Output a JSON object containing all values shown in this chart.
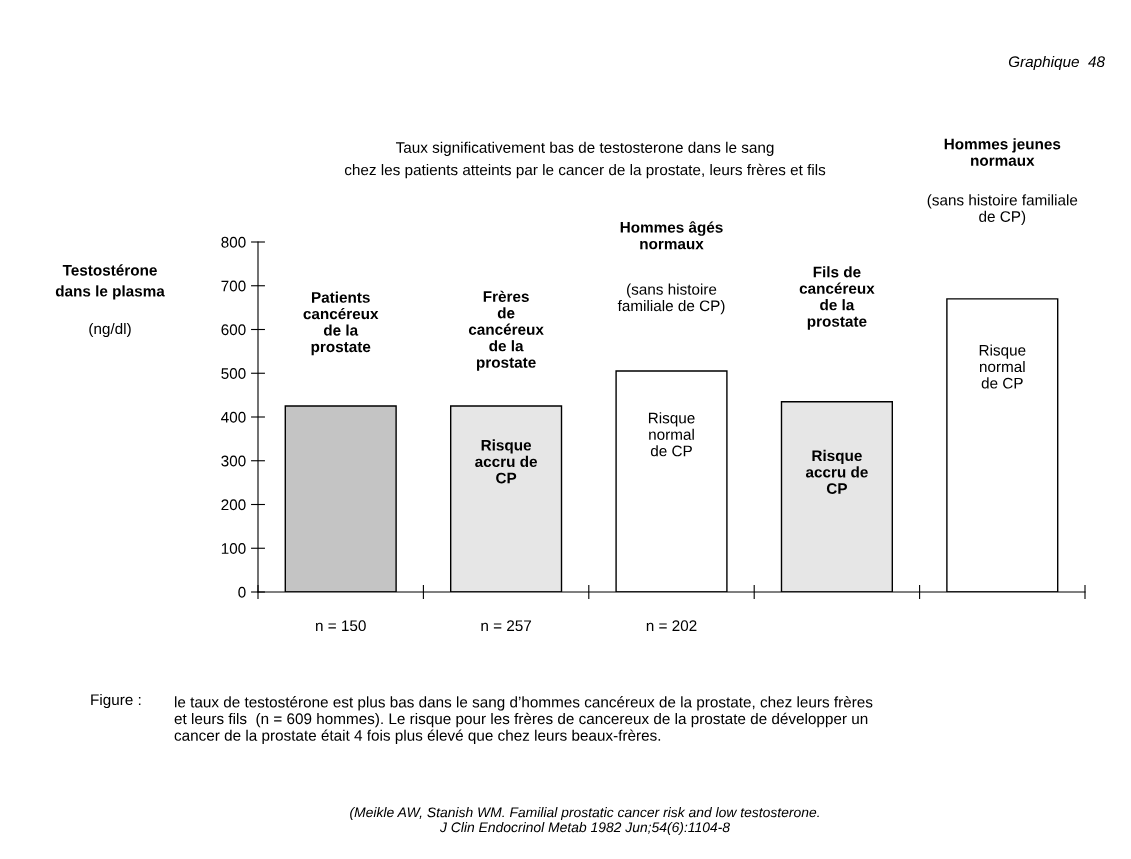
{
  "chart_data": {
    "type": "bar",
    "title": "Taux significativement bas de testosterone dans le sang\nchez les patients atteints par le cancer de la prostate, leurs frères et fils",
    "ylabel": "Testostérone\ndans le plasma",
    "categories": [
      "n = 150",
      "n = 257",
      "n = 202",
      null,
      null
    ],
    "values": [
      425,
      425,
      505,
      435,
      670
    ],
    "colors": [
      "#c4c4c4",
      "#e6e6e6",
      "#ffffff",
      "#e6e6e6",
      "#ffffff"
    ],
    "ylim": [
      0,
      800
    ],
    "yticks": [
      0,
      100,
      200,
      300,
      400,
      500,
      600,
      700,
      800
    ],
    "grid": false,
    "legend": false,
    "annotations": [
      "Graphique  48",
      "Patients\ncancéreux\nde la\nprostate",
      "Frères\nde\ncancéreux\nde la\nprostate",
      "Risque\naccru de\nCP",
      "Hommes âgés\nnormaux",
      "(sans histoire\nfamiliale de CP)",
      "Risque\nnormal\nde CP",
      "Fils de\ncancéreux\nde la\nprostate",
      "Risque\naccru de\nCP",
      "Hommes jeunes\nnormaux",
      "(sans histoire familiale\nde CP)",
      "Risque\nnormal\nde CP",
      "(ng/dl)",
      "Figure :",
      "le taux de testostérone est plus bas dans le sang d’hommes cancéreux de la prostate, chez leurs frères\net leurs fils  (n = 609 hommes). Le risque pour les frères de cancereux de la prostate de développer un\ncancer de la prostate était 4 fois plus élevé que chez leurs beaux-frères.",
      "(Meikle AW, Stanish WM. Familial prostatic cancer risk and low testosterone.\nJ Clin Endocrinol Metab 1982 Jun;54(6):1104-8"
    ]
  }
}
